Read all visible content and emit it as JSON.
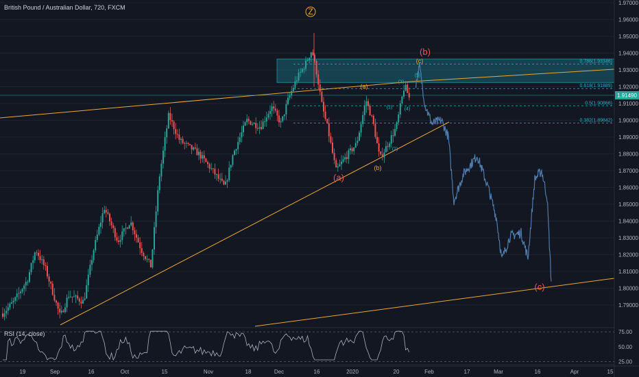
{
  "chart_data": {
    "type": "candlestick",
    "title": "British Pound / Australian Dollar, 720, FXCM",
    "price_axis": {
      "ticks": [
        1.97,
        1.96,
        1.95,
        1.94,
        1.93,
        1.92,
        1.91,
        1.9,
        1.89,
        1.88,
        1.87,
        1.86,
        1.85,
        1.84,
        1.83,
        1.82,
        1.81,
        1.8,
        1.79
      ],
      "tick_labels": [
        "1.97000",
        "1.96000",
        "1.95000",
        "1.94000",
        "1.93000",
        "1.92000",
        "1.91000",
        "1.90000",
        "1.89000",
        "1.88000",
        "1.87000",
        "1.86000",
        "1.85000",
        "1.84000",
        "1.83000",
        "1.82000",
        "1.81000",
        "1.80000",
        "1.79000"
      ],
      "range": [
        1.782,
        1.972
      ],
      "last_price": 1.9149,
      "last_price_label": "1.91490"
    },
    "time_axis": {
      "labels": [
        "19",
        "Sep",
        "16",
        "Oct",
        "15",
        "Nov",
        "18",
        "Dec",
        "16",
        "2020",
        "20",
        "Feb",
        "17",
        "Mar",
        "16",
        "Apr",
        "15"
      ]
    },
    "colors": {
      "up": "#26a69a",
      "down": "#ef5350",
      "projection": "#4f7cac",
      "trendline": "#f0a830",
      "fib": "#20b2c8",
      "rsi": "#a8b4c4"
    },
    "fib_levels": [
      {
        "level": 0.786,
        "price": 1.93346,
        "label": "0.786(1.93346)"
      },
      {
        "level": 0.618,
        "price": 1.91889,
        "label": "0.618(1.91889)"
      },
      {
        "level": 0.5,
        "price": 1.90866,
        "label": "0.5(1.90866)"
      },
      {
        "level": 0.382,
        "price": 1.89842,
        "label": "0.382(1.89842)"
      }
    ],
    "zone": {
      "from": 1.9225,
      "to": 1.9365
    },
    "wave_labels": [
      {
        "text": "Z",
        "color": "#f0a830",
        "price": 1.963,
        "circled": true
      },
      {
        "text": "(b)",
        "color": "#ef5350",
        "price": 1.939
      },
      {
        "text": "(c)",
        "color": "#f0a830",
        "price": 1.934
      },
      {
        "text": "(5)",
        "color": "#20b2c8",
        "price": 1.926
      },
      {
        "text": "(3)",
        "color": "#20b2c8",
        "price": 1.922
      },
      {
        "text": "(a)",
        "color": "#f0a830",
        "price": 1.919
      },
      {
        "text": "(1)",
        "color": "#20b2c8",
        "price": 1.907
      },
      {
        "text": "(4)",
        "color": "#20b2c8",
        "price": 1.906
      },
      {
        "text": "(2)",
        "color": "#20b2c8",
        "price": 1.882
      },
      {
        "text": "(b)",
        "color": "#f0a830",
        "price": 1.8705
      },
      {
        "text": "(a)",
        "color": "#ef5350",
        "price": 1.864
      },
      {
        "text": "(c)",
        "color": "#ef5350",
        "price": 1.799
      }
    ],
    "rsi": {
      "title": "RSI (14, close)",
      "ticks": [
        75,
        50,
        25
      ],
      "tick_labels": [
        "75.00",
        "50.00",
        "25.00"
      ],
      "range": [
        20,
        82
      ]
    }
  }
}
